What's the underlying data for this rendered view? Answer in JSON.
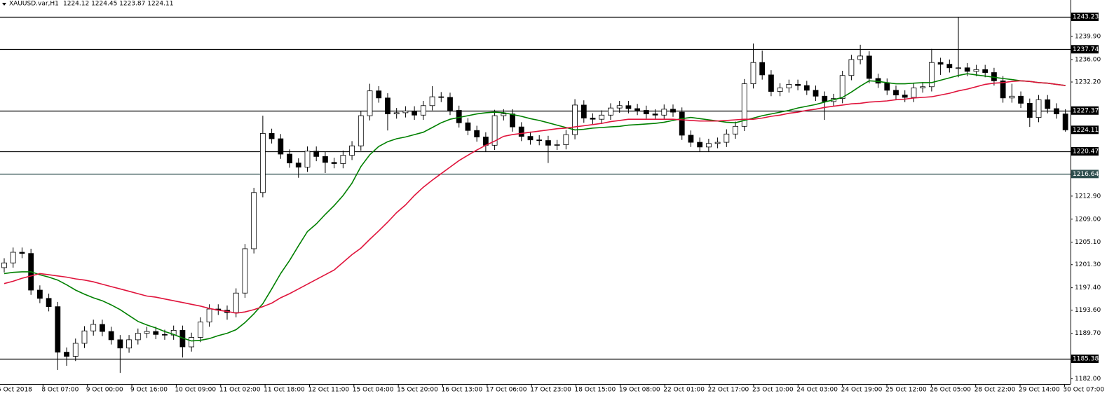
{
  "chart_data": {
    "type": "candlestick",
    "title": "XAUUSD.var,H1",
    "quote": "1224.12 1224.45 1223.87 1224.11",
    "ylim": [
      1181.12,
      1246.07
    ],
    "yticks": [
      {
        "value": 1182,
        "label": "1182.00"
      },
      {
        "value": 1189.7,
        "label": "1189.70"
      },
      {
        "value": 1193.6,
        "label": "1193.60"
      },
      {
        "value": 1197.4,
        "label": "1197.40"
      },
      {
        "value": 1201.3,
        "label": "1201.30"
      },
      {
        "value": 1205.1,
        "label": "1205.10"
      },
      {
        "value": 1209,
        "label": "1209.00"
      },
      {
        "value": 1212.9,
        "label": "1212.90"
      },
      {
        "value": 1232.2,
        "label": "1232.20"
      },
      {
        "value": 1236,
        "label": "1236.00"
      },
      {
        "value": 1239.9,
        "label": "1239.90"
      }
    ],
    "xtick_labels": [
      "5 Oct 2018",
      "8 Oct 07:00",
      "9 Oct 00:00",
      "9 Oct 16:00",
      "10 Oct 09:00",
      "11 Oct 02:00",
      "11 Oct 18:00",
      "12 Oct 11:00",
      "15 Oct 04:00",
      "15 Oct 20:00",
      "16 Oct 13:00",
      "17 Oct 06:00",
      "17 Oct 23:00",
      "18 Oct 15:00",
      "19 Oct 08:00",
      "22 Oct 01:00",
      "22 Oct 17:00",
      "23 Oct 10:00",
      "24 Oct 03:00",
      "24 Oct 19:00",
      "25 Oct 12:00",
      "26 Oct 05:00",
      "28 Oct 22:00",
      "29 Oct 14:00",
      "30 Oct 07:00"
    ],
    "open": [
      1200.8,
      1201.6,
      1203.4,
      1203.2,
      1197.0,
      1195.6,
      1194.2,
      1186.5,
      1185.8,
      1188.0,
      1190.1,
      1191.2,
      1190.0,
      1188.6,
      1187.2,
      1188.6,
      1189.7,
      1190.0,
      1189.5,
      1189.4,
      1190.2,
      1187.4,
      1189.0,
      1191.6,
      1193.8,
      1193.6,
      1193.2,
      1196.5,
      1204.0,
      1213.5,
      1223.5,
      1222.6,
      1220.0,
      1218.5,
      1217.8,
      1220.5,
      1219.6,
      1218.6,
      1218.4,
      1219.8,
      1221.4,
      1226.5,
      1230.7,
      1229.5,
      1226.8,
      1227.0,
      1227.3,
      1226.6,
      1228.2,
      1229.7,
      1229.6,
      1227.4,
      1225.3,
      1224.0,
      1222.9,
      1221.5,
      1226.5,
      1226.8,
      1224.6,
      1223.0,
      1222.4,
      1222.3,
      1221.5,
      1221.6,
      1223.3,
      1228.3,
      1226.1,
      1225.9,
      1226.6,
      1227.8,
      1228.2,
      1227.7,
      1227.4,
      1226.8,
      1226.6,
      1227.6,
      1227.1,
      1223.2,
      1222.0,
      1221.2,
      1221.8,
      1222.0,
      1223.4,
      1224.7,
      1231.9,
      1235.5,
      1233.4,
      1230.6,
      1231.2,
      1231.8,
      1231.6,
      1230.8,
      1229.8,
      1228.9,
      1229.4,
      1233.3,
      1236.0,
      1236.6,
      1232.8,
      1232.0,
      1230.8,
      1230.0,
      1229.6,
      1231.2,
      1231.4,
      1235.5,
      1235.2,
      1234.6,
      1234.6,
      1234.0,
      1234.3,
      1233.8,
      1232.4,
      1229.5,
      1229.8,
      1228.6,
      1226.2,
      1229.2,
      1227.7,
      1226.8
    ],
    "high": [
      1202.4,
      1204.2,
      1204.2,
      1204.0,
      1197.8,
      1196.4,
      1195.0,
      1187.3,
      1188.8,
      1190.9,
      1192.0,
      1192.0,
      1190.8,
      1189.4,
      1189.4,
      1190.5,
      1190.8,
      1190.8,
      1190.3,
      1191.0,
      1191.0,
      1189.8,
      1192.4,
      1194.6,
      1194.6,
      1194.4,
      1197.3,
      1204.8,
      1214.3,
      1226.5,
      1224.3,
      1223.4,
      1220.8,
      1219.3,
      1221.3,
      1221.3,
      1220.4,
      1219.4,
      1220.6,
      1222.2,
      1227.3,
      1231.9,
      1231.5,
      1230.3,
      1227.8,
      1228.1,
      1228.1,
      1229.0,
      1231.5,
      1230.5,
      1230.4,
      1228.2,
      1226.1,
      1224.8,
      1223.7,
      1227.5,
      1227.6,
      1227.6,
      1225.4,
      1223.8,
      1223.2,
      1223.1,
      1222.4,
      1224.1,
      1229.3,
      1229.1,
      1226.9,
      1227.4,
      1228.6,
      1229.0,
      1229.0,
      1228.5,
      1228.2,
      1227.6,
      1228.4,
      1228.4,
      1227.9,
      1224.0,
      1222.8,
      1222.6,
      1222.8,
      1224.2,
      1225.5,
      1232.7,
      1238.7,
      1237.5,
      1234.2,
      1232.0,
      1232.6,
      1232.6,
      1232.4,
      1231.6,
      1230.6,
      1230.2,
      1234.1,
      1236.8,
      1238.5,
      1237.4,
      1233.6,
      1232.8,
      1231.6,
      1230.8,
      1232.0,
      1232.2,
      1237.8,
      1236.3,
      1236.0,
      1243.2,
      1235.4,
      1235.1,
      1235.1,
      1234.6,
      1233.2,
      1231.9,
      1230.6,
      1229.4,
      1230.0,
      1230.0,
      1228.6,
      1227.6
    ],
    "low": [
      1200.0,
      1200.8,
      1202.4,
      1196.2,
      1194.8,
      1193.4,
      1183.5,
      1184.2,
      1185.0,
      1187.2,
      1189.3,
      1189.2,
      1187.8,
      1183.0,
      1186.4,
      1187.8,
      1188.9,
      1188.7,
      1188.6,
      1188.6,
      1185.6,
      1186.6,
      1188.2,
      1190.8,
      1192.8,
      1192.0,
      1192.4,
      1195.7,
      1203.2,
      1212.7,
      1221.8,
      1219.2,
      1217.7,
      1216.0,
      1217.0,
      1218.8,
      1216.8,
      1217.6,
      1217.6,
      1219.0,
      1220.6,
      1225.7,
      1228.7,
      1224.0,
      1226.0,
      1226.2,
      1225.8,
      1225.8,
      1227.4,
      1228.8,
      1226.6,
      1224.5,
      1223.2,
      1222.1,
      1220.4,
      1220.7,
      1225.7,
      1223.8,
      1222.2,
      1221.6,
      1221.5,
      1218.5,
      1220.7,
      1220.8,
      1222.5,
      1225.3,
      1225.1,
      1225.1,
      1225.8,
      1227.0,
      1226.9,
      1226.6,
      1226.0,
      1225.8,
      1225.8,
      1226.3,
      1222.4,
      1221.2,
      1220.4,
      1220.4,
      1221.0,
      1221.2,
      1222.6,
      1223.9,
      1231.1,
      1232.6,
      1229.8,
      1229.8,
      1230.4,
      1230.8,
      1230.0,
      1229.0,
      1225.8,
      1228.1,
      1228.6,
      1232.5,
      1235.2,
      1232.0,
      1231.2,
      1230.0,
      1229.2,
      1228.8,
      1228.8,
      1230.4,
      1230.6,
      1233.4,
      1233.8,
      1233.0,
      1233.2,
      1233.2,
      1233.0,
      1231.6,
      1228.7,
      1228.7,
      1227.8,
      1224.6,
      1225.4,
      1226.9,
      1226.0,
      1223.8
    ],
    "close": [
      1201.6,
      1203.4,
      1203.2,
      1197.0,
      1195.6,
      1194.2,
      1186.5,
      1185.8,
      1188.0,
      1190.1,
      1191.2,
      1190.0,
      1188.6,
      1187.2,
      1188.6,
      1189.7,
      1190.0,
      1189.5,
      1189.4,
      1190.2,
      1187.4,
      1189.0,
      1191.6,
      1193.8,
      1193.6,
      1193.2,
      1196.5,
      1204.0,
      1213.5,
      1223.5,
      1222.6,
      1220.0,
      1218.5,
      1217.8,
      1220.5,
      1219.6,
      1218.6,
      1218.4,
      1219.8,
      1221.4,
      1226.5,
      1230.7,
      1229.5,
      1226.8,
      1227.0,
      1227.3,
      1226.6,
      1228.2,
      1229.7,
      1229.6,
      1227.4,
      1225.3,
      1224.0,
      1222.9,
      1221.5,
      1226.5,
      1226.8,
      1224.6,
      1223.0,
      1222.4,
      1222.3,
      1221.5,
      1221.6,
      1223.3,
      1228.3,
      1226.1,
      1225.9,
      1226.6,
      1227.8,
      1228.2,
      1227.7,
      1227.4,
      1226.8,
      1226.6,
      1227.6,
      1227.1,
      1223.2,
      1222.0,
      1221.2,
      1221.8,
      1222.0,
      1223.4,
      1224.7,
      1231.9,
      1235.5,
      1233.4,
      1230.6,
      1231.2,
      1231.8,
      1231.6,
      1230.8,
      1229.8,
      1228.9,
      1229.4,
      1233.3,
      1236.0,
      1236.6,
      1232.8,
      1232.0,
      1230.8,
      1230.0,
      1229.6,
      1231.2,
      1231.4,
      1235.5,
      1235.2,
      1234.6,
      1234.6,
      1234.0,
      1234.3,
      1233.8,
      1232.4,
      1229.5,
      1229.8,
      1228.6,
      1226.2,
      1229.2,
      1227.7,
      1226.8,
      1224.1
    ],
    "moving_averages": [
      {
        "color": "#008000",
        "values": [
          1199.8,
          1200.0,
          1200.1,
          1200.1,
          1199.6,
          1199.2,
          1198.7,
          1197.9,
          1197.0,
          1196.3,
          1195.7,
          1195.2,
          1194.5,
          1193.7,
          1192.7,
          1191.7,
          1191.1,
          1190.6,
          1190.0,
          1189.5,
          1188.9,
          1188.4,
          1188.5,
          1188.8,
          1189.3,
          1189.7,
          1190.3,
          1191.5,
          1193.0,
          1194.7,
          1197.2,
          1199.8,
          1202.0,
          1204.5,
          1206.9,
          1208.2,
          1209.8,
          1211.3,
          1213.0,
          1215.1,
          1217.9,
          1219.9,
          1221.3,
          1222.1,
          1222.6,
          1222.9,
          1223.3,
          1223.7,
          1224.5,
          1225.3,
          1225.9,
          1226.2,
          1226.5,
          1226.8,
          1227.0,
          1227.1,
          1227.0,
          1226.7,
          1226.4,
          1226.0,
          1225.7,
          1225.3,
          1224.9,
          1224.5,
          1224.1,
          1224.2,
          1224.4,
          1224.5,
          1224.6,
          1224.7,
          1224.9,
          1225.0,
          1225.1,
          1225.2,
          1225.4,
          1225.7,
          1226.0,
          1226.2,
          1226.0,
          1225.8,
          1225.6,
          1225.4,
          1225.3,
          1225.7,
          1226.1,
          1226.5,
          1226.8,
          1227.1,
          1227.4,
          1227.8,
          1228.1,
          1228.4,
          1228.8,
          1229.2,
          1229.6,
          1230.5,
          1231.5,
          1232.4,
          1232.3,
          1232.1,
          1231.9,
          1231.9,
          1232.0,
          1232.1,
          1232.1,
          1232.5,
          1232.9,
          1233.3,
          1233.6,
          1233.4,
          1233.2,
          1233.0,
          1232.8,
          1232.6,
          1232.4,
          1232.3,
          1232.1,
          1232.0,
          1231.8,
          1231.6
        ]
      },
      {
        "color": "#e0143c",
        "values": [
          1198.1,
          1198.5,
          1199.0,
          1199.4,
          1199.8,
          1199.6,
          1199.4,
          1199.2,
          1198.9,
          1198.7,
          1198.4,
          1198.0,
          1197.6,
          1197.2,
          1196.8,
          1196.4,
          1196.0,
          1195.8,
          1195.5,
          1195.2,
          1194.9,
          1194.6,
          1194.3,
          1193.9,
          1193.6,
          1193.4,
          1193.1,
          1193.3,
          1193.7,
          1194.2,
          1194.8,
          1195.7,
          1196.4,
          1197.2,
          1198.0,
          1198.8,
          1199.6,
          1200.4,
          1201.7,
          1203.0,
          1204.1,
          1205.6,
          1207.0,
          1208.5,
          1210.1,
          1211.4,
          1213.0,
          1214.4,
          1215.6,
          1216.7,
          1217.8,
          1218.9,
          1219.8,
          1220.7,
          1221.5,
          1222.2,
          1223.0,
          1223.3,
          1223.5,
          1223.7,
          1223.9,
          1224.1,
          1224.3,
          1224.4,
          1224.6,
          1224.8,
          1225.0,
          1225.2,
          1225.5,
          1225.7,
          1225.9,
          1225.9,
          1225.9,
          1225.9,
          1225.9,
          1225.9,
          1225.8,
          1225.7,
          1225.6,
          1225.6,
          1225.6,
          1225.7,
          1225.8,
          1225.9,
          1225.9,
          1226.1,
          1226.4,
          1226.6,
          1226.9,
          1227.1,
          1227.4,
          1227.6,
          1227.9,
          1228.1,
          1228.3,
          1228.5,
          1228.6,
          1228.8,
          1228.9,
          1229.0,
          1229.2,
          1229.3,
          1229.5,
          1229.6,
          1229.7,
          1230.0,
          1230.3,
          1230.7,
          1231.0,
          1231.4,
          1231.8,
          1232.0,
          1232.1,
          1232.3,
          1232.4,
          1232.3,
          1232.1,
          1232.0,
          1231.8,
          1231.6
        ]
      }
    ],
    "levels": [
      {
        "value": 1243.23,
        "color": "#000000"
      },
      {
        "value": 1237.74,
        "color": "#000000"
      },
      {
        "value": 1227.37,
        "color": "#000000"
      },
      {
        "value": 1220.47,
        "color": "#000000"
      },
      {
        "value": 1216.64,
        "color": "#2f4f4f"
      },
      {
        "value": 1185.38,
        "color": "#000000"
      }
    ],
    "bid": 1224.11,
    "up_color": "#ffffff",
    "down_color": "#000000"
  }
}
